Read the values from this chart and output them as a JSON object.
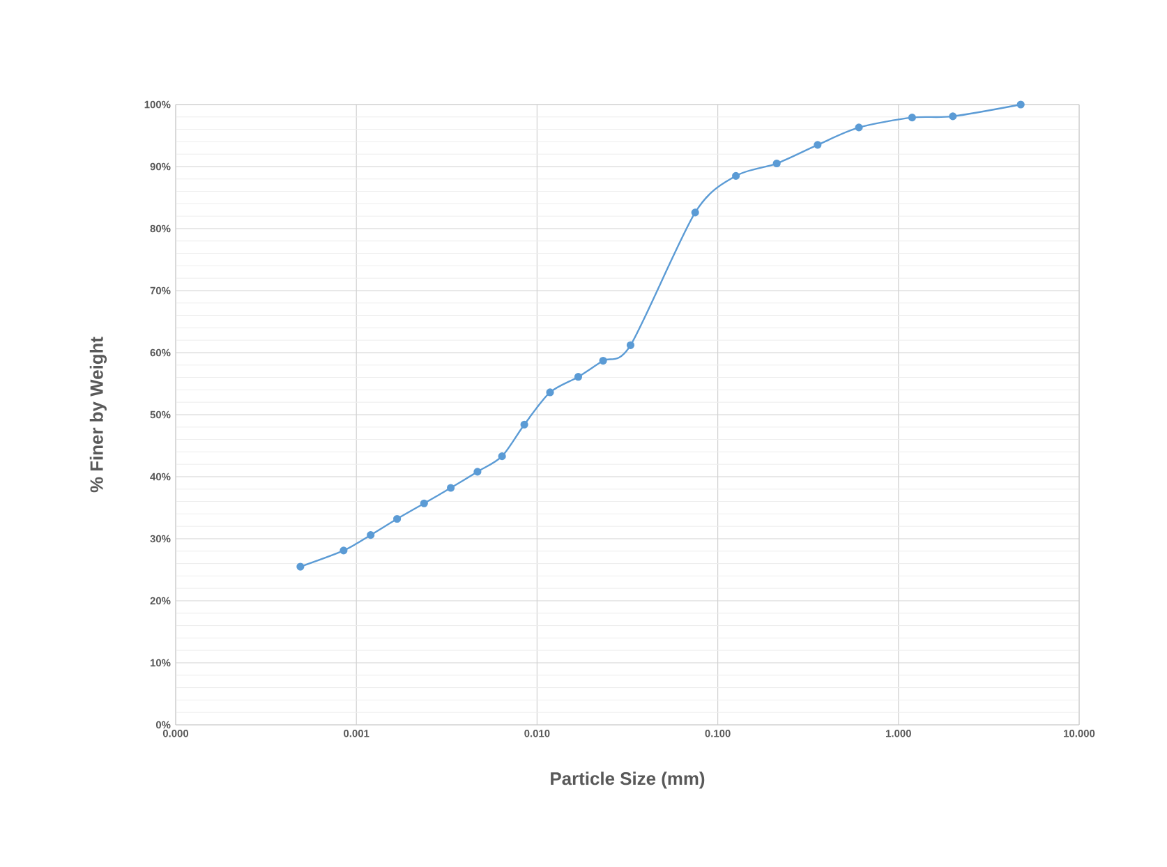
{
  "chart_data": {
    "type": "line",
    "xlabel": "Particle Size (mm)",
    "ylabel": "% Finer by Weight",
    "log": "x",
    "grid": true,
    "marker": "circle",
    "line_style": "solid",
    "xlim": [
      0.0001,
      10
    ],
    "ylim": [
      0,
      100
    ],
    "xticks": [
      {
        "value": 0.0001,
        "label": "0.000"
      },
      {
        "value": 0.001,
        "label": "0.001"
      },
      {
        "value": 0.01,
        "label": "0.010"
      },
      {
        "value": 0.1,
        "label": "0.100"
      },
      {
        "value": 1,
        "label": "1.000"
      },
      {
        "value": 10,
        "label": "10.000"
      }
    ],
    "yticks": [
      {
        "value": 0,
        "label": "0%"
      },
      {
        "value": 10,
        "label": "10%"
      },
      {
        "value": 20,
        "label": "20%"
      },
      {
        "value": 30,
        "label": "30%"
      },
      {
        "value": 40,
        "label": "40%"
      },
      {
        "value": 50,
        "label": "50%"
      },
      {
        "value": 60,
        "label": "60%"
      },
      {
        "value": 70,
        "label": "70%"
      },
      {
        "value": 80,
        "label": "80%"
      },
      {
        "value": 90,
        "label": "90%"
      },
      {
        "value": 100,
        "label": "100%"
      }
    ],
    "x": [
      0.00049,
      0.00085,
      0.0012,
      0.00168,
      0.00237,
      0.00333,
      0.00468,
      0.0064,
      0.0085,
      0.0118,
      0.0169,
      0.0232,
      0.0329,
      0.075,
      0.126,
      0.212,
      0.357,
      0.604,
      1.19,
      2.0,
      4.75
    ],
    "series": [
      {
        "color": "#5b9bd5",
        "values": [
          25.5,
          28.1,
          30.6,
          33.2,
          35.7,
          38.2,
          40.8,
          43.3,
          48.4,
          53.6,
          56.1,
          58.7,
          61.2,
          82.6,
          88.5,
          90.5,
          93.5,
          96.3,
          97.9,
          98.1,
          100
        ]
      }
    ]
  }
}
